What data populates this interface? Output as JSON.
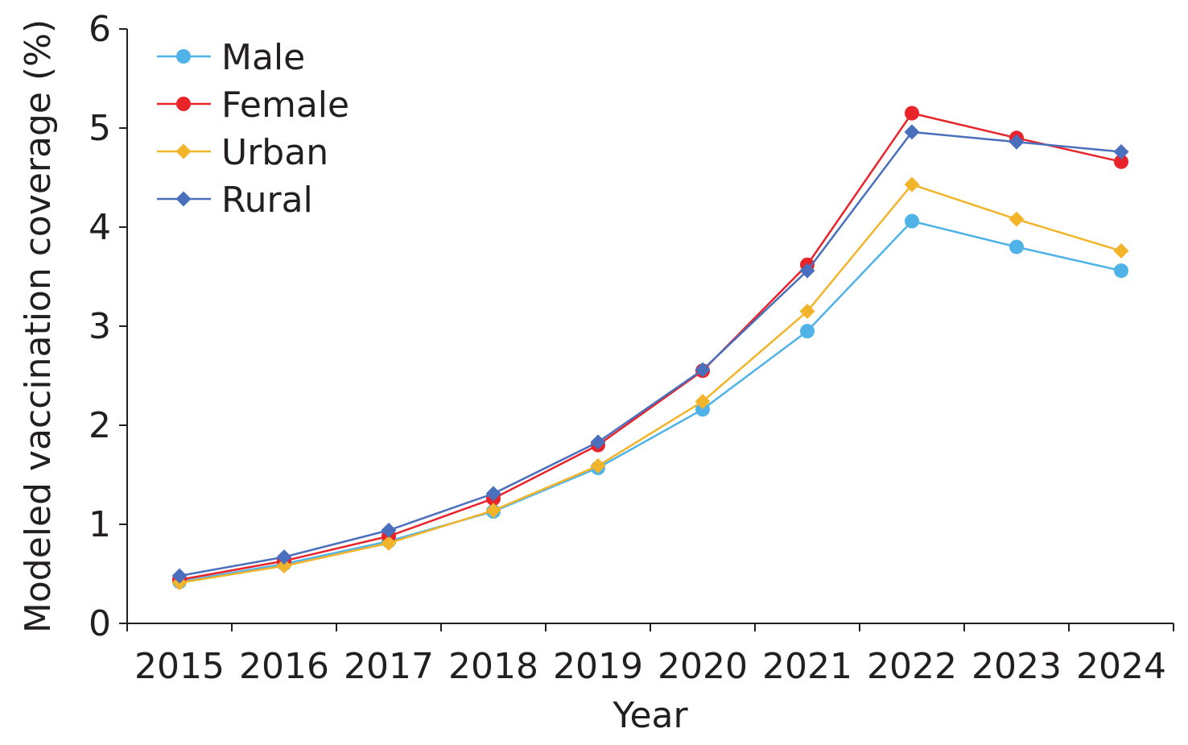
{
  "chart_data": {
    "type": "line",
    "xlabel": "Year",
    "ylabel": "Modeled vaccination coverage (%)",
    "categories": [
      "2015",
      "2016",
      "2017",
      "2018",
      "2019",
      "2020",
      "2021",
      "2022",
      "2023",
      "2024"
    ],
    "ylim": [
      0,
      6
    ],
    "yticks": [
      "0",
      "1",
      "2",
      "3",
      "4",
      "5",
      "6"
    ],
    "grid": false,
    "legend_position": "top-left",
    "series": [
      {
        "name": "Male",
        "color": "#4fb3e8",
        "marker": "circle",
        "values": [
          0.42,
          0.6,
          0.83,
          1.13,
          1.57,
          2.16,
          2.95,
          4.06,
          3.8,
          3.56
        ]
      },
      {
        "name": "Female",
        "color": "#e8232a",
        "marker": "circle",
        "values": [
          0.44,
          0.63,
          0.88,
          1.26,
          1.8,
          2.55,
          3.62,
          5.15,
          4.9,
          4.66
        ]
      },
      {
        "name": "Urban",
        "color": "#f2b42b",
        "marker": "diamond",
        "values": [
          0.41,
          0.58,
          0.81,
          1.14,
          1.59,
          2.24,
          3.15,
          4.43,
          4.08,
          3.76
        ]
      },
      {
        "name": "Rural",
        "color": "#4a6fbc",
        "marker": "diamond",
        "values": [
          0.48,
          0.67,
          0.94,
          1.31,
          1.83,
          2.56,
          3.56,
          4.96,
          4.86,
          4.76
        ]
      }
    ]
  }
}
